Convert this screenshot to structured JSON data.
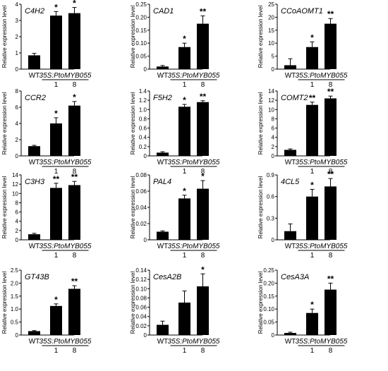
{
  "figure": {
    "ylabel": "Relative expression level",
    "construct_label": "35S:PtoMYB055",
    "category_labels": [
      "WT",
      "1",
      "8"
    ]
  },
  "chart_data": [
    {
      "type": "bar",
      "gene": "C4H2",
      "categories": [
        "WT",
        "1",
        "8"
      ],
      "values": [
        0.85,
        3.3,
        3.45
      ],
      "errors": [
        0.12,
        0.25,
        0.35
      ],
      "significance": [
        "",
        "*",
        "*"
      ],
      "ylim": [
        0,
        4
      ],
      "yticks": [
        "0",
        "1",
        "2",
        "3",
        "4"
      ],
      "ylabel": "Relative expression level"
    },
    {
      "type": "bar",
      "gene": "CAD1",
      "categories": [
        "WT",
        "1",
        "8"
      ],
      "values": [
        0.01,
        0.085,
        0.175
      ],
      "errors": [
        0.004,
        0.015,
        0.03
      ],
      "significance": [
        "",
        "*",
        "**"
      ],
      "ylim": [
        0,
        0.25
      ],
      "yticks": [
        "0",
        "0.05",
        "0.10",
        "0.15",
        "0.20",
        "0.25"
      ],
      "ylabel": "Relative expression level"
    },
    {
      "type": "bar",
      "gene": "CCoAOMT1",
      "categories": [
        "WT",
        "1",
        "8"
      ],
      "values": [
        1.5,
        8.5,
        17.5
      ],
      "errors": [
        2.5,
        2.0,
        2.0
      ],
      "significance": [
        "",
        "*",
        "**"
      ],
      "ylim": [
        0,
        25
      ],
      "yticks": [
        "0",
        "5",
        "10",
        "15",
        "20",
        "25"
      ],
      "ylabel": "Relative expression level"
    },
    {
      "type": "bar",
      "gene": "CCR2",
      "categories": [
        "WT",
        "1",
        "8"
      ],
      "values": [
        1.2,
        4.0,
        6.2
      ],
      "errors": [
        0.1,
        0.7,
        0.5
      ],
      "significance": [
        "",
        "*",
        "*"
      ],
      "ylim": [
        0,
        8
      ],
      "yticks": [
        "0",
        "2",
        "4",
        "6",
        "8"
      ],
      "ylabel": "Relative expression level"
    },
    {
      "type": "bar",
      "gene": "F5H2",
      "categories": [
        "WT",
        "1",
        "8"
      ],
      "values": [
        0.07,
        1.06,
        1.16
      ],
      "errors": [
        0.02,
        0.05,
        0.03
      ],
      "significance": [
        "",
        "*",
        "**"
      ],
      "ylim": [
        0,
        1.4
      ],
      "yticks": [
        "0",
        "0.2",
        "0.4",
        "0.6",
        "0.8",
        "1.0",
        "1.2",
        "1.4"
      ],
      "ylabel": "Relative expression level"
    },
    {
      "type": "bar",
      "gene": "COMT2",
      "categories": [
        "WT",
        "1",
        "8"
      ],
      "values": [
        1.3,
        11.0,
        12.4
      ],
      "errors": [
        0.2,
        0.6,
        0.5
      ],
      "significance": [
        "",
        "**",
        "**"
      ],
      "ylim": [
        0,
        14
      ],
      "yticks": [
        "0",
        "2",
        "4",
        "6",
        "8",
        "10",
        "12",
        "14"
      ],
      "ylabel": "Relative expression level"
    },
    {
      "type": "bar",
      "gene": "C3H3",
      "categories": [
        "WT",
        "1",
        "8"
      ],
      "values": [
        1.2,
        11.2,
        11.8
      ],
      "errors": [
        0.2,
        1.0,
        0.8
      ],
      "significance": [
        "",
        "**",
        "**"
      ],
      "ylim": [
        0,
        14
      ],
      "yticks": [
        "0",
        "2",
        "4",
        "6",
        "8",
        "10",
        "12",
        "14"
      ],
      "ylabel": "Relative expression level"
    },
    {
      "type": "bar",
      "gene": "PAL4",
      "categories": [
        "WT",
        "1",
        "8"
      ],
      "values": [
        0.01,
        0.051,
        0.063
      ],
      "errors": [
        0.001,
        0.004,
        0.01
      ],
      "significance": [
        "",
        "*",
        "*"
      ],
      "ylim": [
        0,
        0.08
      ],
      "yticks": [
        "0",
        "0.02",
        "0.04",
        "0.06",
        "0.08"
      ],
      "ylabel": "Relative expression level"
    },
    {
      "type": "bar",
      "gene": "4CL5",
      "categories": [
        "WT",
        "1",
        "8"
      ],
      "values": [
        0.12,
        0.6,
        0.74
      ],
      "errors": [
        0.1,
        0.1,
        0.11
      ],
      "significance": [
        "",
        "*",
        "**"
      ],
      "ylim": [
        0,
        0.9
      ],
      "yticks": [
        "0",
        "0.3",
        "0.6",
        "0.9"
      ],
      "ylabel": "Relative expression level"
    },
    {
      "type": "bar",
      "gene": "GT43B",
      "categories": [
        "WT",
        "1",
        "8"
      ],
      "values": [
        0.15,
        1.12,
        1.78
      ],
      "errors": [
        0.02,
        0.08,
        0.12
      ],
      "significance": [
        "",
        "*",
        "**"
      ],
      "ylim": [
        0,
        2.5
      ],
      "yticks": [
        "0",
        "0.5",
        "1.0",
        "1.5",
        "2.0",
        "2.5"
      ],
      "ylabel": "Relative expression level"
    },
    {
      "type": "bar",
      "gene": "CesA2B",
      "categories": [
        "WT",
        "1",
        "8"
      ],
      "values": [
        0.022,
        0.07,
        0.105
      ],
      "errors": [
        0.008,
        0.025,
        0.027
      ],
      "significance": [
        "",
        "",
        "*"
      ],
      "ylim": [
        0,
        0.14
      ],
      "yticks": [
        "0",
        "0.02",
        "0.04",
        "0.06",
        "0.08",
        "0.10",
        "0.12",
        "0.14"
      ],
      "ylabel": "Relative expression level"
    },
    {
      "type": "bar",
      "gene": "CesA3A",
      "categories": [
        "WT",
        "1",
        "8"
      ],
      "values": [
        0.008,
        0.085,
        0.175
      ],
      "errors": [
        0.003,
        0.015,
        0.025
      ],
      "significance": [
        "",
        "*",
        "**"
      ],
      "ylim": [
        0,
        0.25
      ],
      "yticks": [
        "0",
        "0.05",
        "0.10",
        "0.15",
        "0.20",
        "0.25"
      ],
      "ylabel": "Relative expression level"
    }
  ]
}
